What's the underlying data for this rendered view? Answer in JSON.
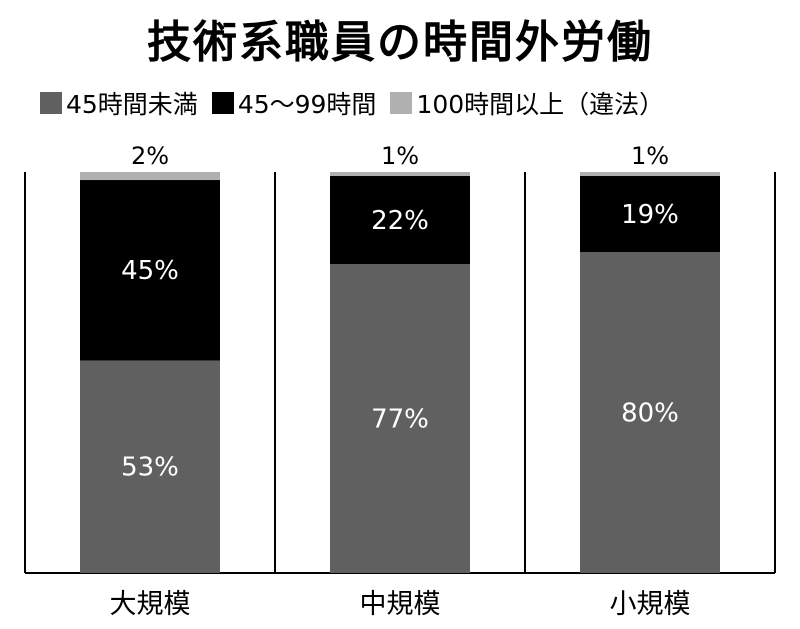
{
  "chart_data": {
    "type": "bar",
    "stacked": true,
    "title": "技術系職員の時間外労働",
    "categories": [
      "大規模",
      "中規模",
      "小規模"
    ],
    "series": [
      {
        "name": "45時間未満",
        "values": [
          53,
          77,
          80
        ],
        "labels": [
          "53%",
          "77%",
          "80%"
        ],
        "color": "#606060",
        "label_color": "#ffffff"
      },
      {
        "name": "45～99時間",
        "values": [
          45,
          22,
          19
        ],
        "labels": [
          "45%",
          "22%",
          "19%"
        ],
        "color": "#000000",
        "label_color": "#ffffff"
      },
      {
        "name": "100時間以上（違法）",
        "values": [
          2,
          1,
          1
        ],
        "labels": [
          "2%",
          "1%",
          "1%"
        ],
        "color": "#b0b0b0",
        "label_color": "#000000"
      }
    ],
    "ylim": [
      0,
      100
    ],
    "xlabel": "",
    "ylabel": "",
    "grid": false,
    "legend_position": "top-left",
    "frame_color": "#000000"
  }
}
